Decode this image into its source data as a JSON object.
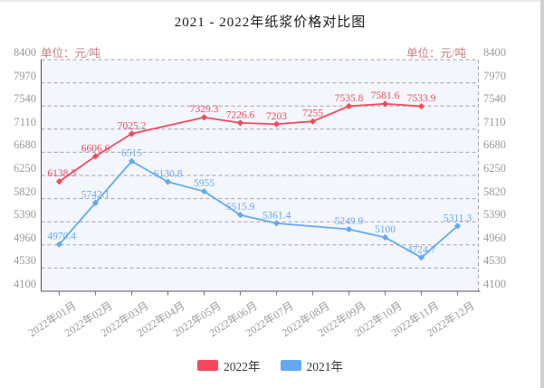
{
  "title": "2021 - 2022年纸浆价格对比图",
  "units": {
    "left": "单位：元/吨",
    "right": "单位：元/吨"
  },
  "legend": [
    {
      "label": "2022年",
      "color": "#f4495c"
    },
    {
      "label": "2021年",
      "color": "#64a9f2"
    }
  ],
  "colors": {
    "red_series": "#f4495c",
    "blue_series": "#64a9f2",
    "grid": "#999999",
    "axis": "#555555",
    "plot_bg": "#f3f6fc",
    "tick_text": "#9a9a9a",
    "unit_text": "#c27f7f"
  },
  "chart_data": {
    "type": "line",
    "title": "2021 - 2022年纸浆价格对比图",
    "unit": "元/吨",
    "categories": [
      "2022年01月",
      "2022年02月",
      "2022年03月",
      "2022年04月",
      "2022年05月",
      "2022年06月",
      "2022年07月",
      "2022年08月",
      "2022年09月",
      "2022年10月",
      "2022年11月",
      "2022年12月"
    ],
    "y_ticks": [
      8400,
      7970,
      7540,
      7110,
      6680,
      6250,
      5820,
      5390,
      4960,
      4530,
      4100
    ],
    "ylim": [
      4100,
      8400
    ],
    "grid": true,
    "grid_style": "dashed",
    "legend_position": "bottom",
    "x_label_rotation": -33,
    "series": [
      {
        "name": "2022年",
        "color": "#f4495c",
        "values": [
          6138.5,
          6606.6,
          7025.2,
          null,
          7329.3,
          7226.6,
          7203,
          7255,
          7535.8,
          7581.6,
          7533.9,
          null
        ]
      },
      {
        "name": "2021年",
        "color": "#64a9f2",
        "values": [
          4970.4,
          5742.1,
          6515,
          6130.8,
          5955,
          5515.9,
          5361.4,
          null,
          5249.9,
          5100,
          4724.7,
          5311.3
        ]
      }
    ]
  }
}
